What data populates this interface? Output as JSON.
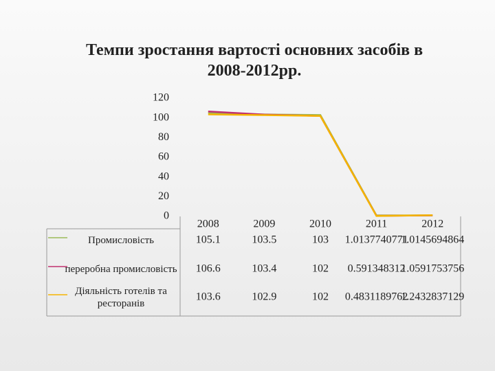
{
  "chart_data": {
    "type": "line",
    "title": "Темпи зростання вартості основних засобів в 2008-2012рр.",
    "categories": [
      "2008",
      "2009",
      "2010",
      "2011",
      "2012"
    ],
    "series": [
      {
        "name": "Промисловість",
        "color": "#9bbb59",
        "values": [
          105.1,
          103.5,
          103,
          1.0137740771,
          1.0145694864
        ]
      },
      {
        "name": "переробна промисловість",
        "color": "#c0306e",
        "values": [
          106.6,
          103.4,
          102,
          0.591348312,
          1.0591753756
        ]
      },
      {
        "name": "Діяльність готелів та ресторанів",
        "color": "#f5b400",
        "values": [
          103.6,
          102.9,
          102,
          0.4831189762,
          1.2432837129
        ]
      }
    ],
    "ylim": [
      0,
      120
    ],
    "yticks": [
      0,
      20,
      40,
      60,
      80,
      100,
      120
    ],
    "grid": false
  }
}
